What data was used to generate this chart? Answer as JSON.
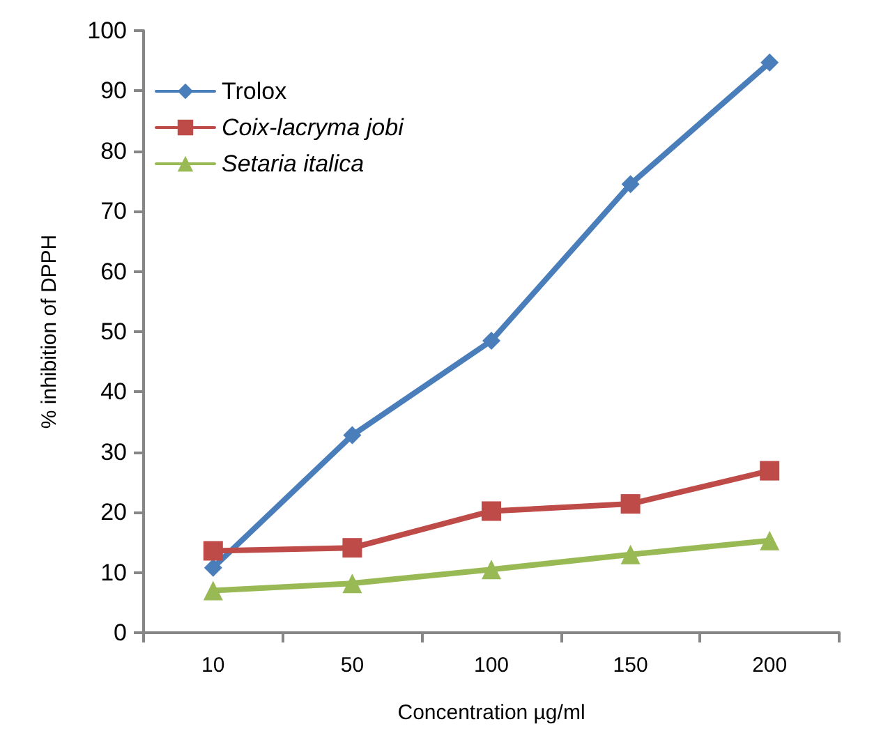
{
  "chart_data": {
    "type": "line",
    "xlabel": "Concentration µg/ml",
    "ylabel": "% inhibition of DPPH",
    "categories": [
      "10",
      "50",
      "100",
      "150",
      "200"
    ],
    "series": [
      {
        "name": "Trolox",
        "color": "#4a7ebb",
        "marker": "diamond",
        "values": [
          10.8,
          32.8,
          48.5,
          74.5,
          94.7
        ]
      },
      {
        "name": "Coix-lacryma jobi",
        "color": "#be4b48",
        "marker": "square",
        "values": [
          13.6,
          14.1,
          20.2,
          21.4,
          26.9
        ]
      },
      {
        "name": "Setaria italica",
        "color": "#98b954",
        "marker": "triangle",
        "values": [
          7.0,
          8.2,
          10.5,
          13.0,
          15.3
        ]
      }
    ],
    "ylim": [
      0,
      100
    ],
    "yticks": [
      0,
      10,
      20,
      30,
      40,
      50,
      60,
      70,
      80,
      90,
      100
    ],
    "grid": false,
    "legend": "top left",
    "line_style": "solid"
  }
}
